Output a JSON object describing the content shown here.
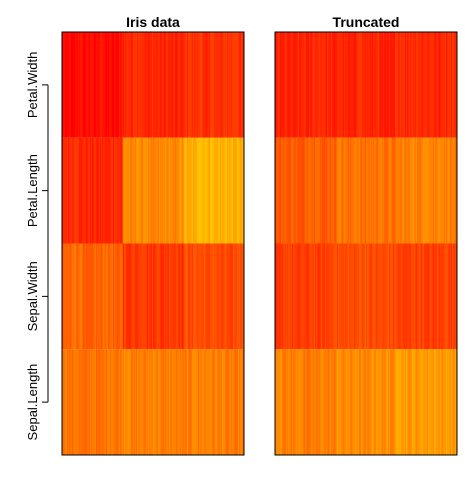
{
  "chart_data": {
    "type": "heatmap",
    "palette": {
      "low": "#ffff4d",
      "mid": "#ff9900",
      "high": "#ff1a00",
      "note": "heat colors: red=high, yellow=low, scaled per row"
    },
    "rows": [
      "Sepal.Length",
      "Sepal.Width",
      "Petal.Length",
      "Petal.Width"
    ],
    "panels": [
      {
        "title": "Iris data",
        "groups_per_row": 3,
        "row_profiles": [
          {
            "row": "Sepal.Length",
            "levels": [
              0.55,
              0.5,
              0.5
            ]
          },
          {
            "row": "Sepal.Width",
            "levels": [
              0.6,
              0.8,
              0.7
            ]
          },
          {
            "row": "Petal.Length",
            "levels": [
              0.85,
              0.45,
              0.3
            ]
          },
          {
            "row": "Petal.Width",
            "levels": [
              0.95,
              0.85,
              0.8
            ]
          }
        ]
      },
      {
        "title": "Truncated",
        "groups_per_row": 3,
        "row_profiles": [
          {
            "row": "Sepal.Length",
            "levels": [
              0.5,
              0.45,
              0.4
            ]
          },
          {
            "row": "Sepal.Width",
            "levels": [
              0.75,
              0.7,
              0.75
            ]
          },
          {
            "row": "Petal.Length",
            "levels": [
              0.65,
              0.55,
              0.5
            ]
          },
          {
            "row": "Petal.Width",
            "levels": [
              0.85,
              0.85,
              0.85
            ]
          }
        ]
      }
    ]
  }
}
